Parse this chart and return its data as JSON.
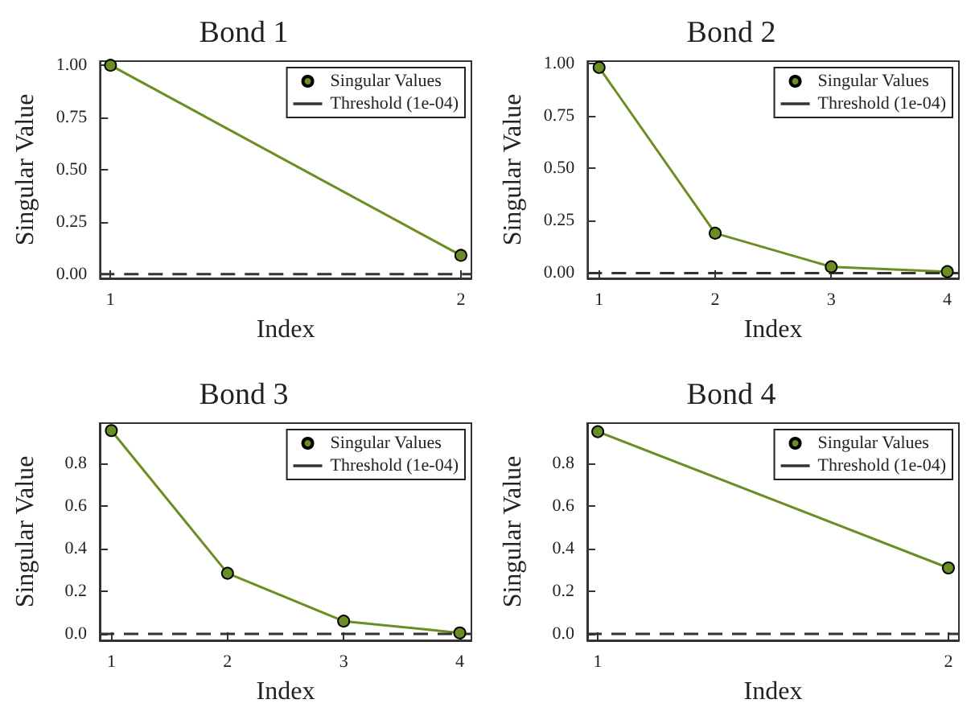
{
  "chart_data": [
    {
      "type": "line",
      "title": "Bond 1",
      "xlabel": "Index",
      "ylabel": "Singular Value",
      "x": [
        1,
        2
      ],
      "xlim": [
        0.97,
        2.03
      ],
      "xticks": [
        1,
        2
      ],
      "ylim": [
        -0.02,
        1.02
      ],
      "yticks": [
        {
          "value": 0,
          "label": "0.00"
        },
        {
          "value": 0.25,
          "label": "0.25"
        },
        {
          "value": 0.5,
          "label": "0.50"
        },
        {
          "value": 0.75,
          "label": "0.75"
        },
        {
          "value": 1,
          "label": "1.00"
        }
      ],
      "series": [
        {
          "name": "Singular Values",
          "color": "#6b8e23",
          "values": [
            1.0,
            0.09
          ]
        }
      ],
      "ref_lines": [
        {
          "axis": "y",
          "value": 0.0001,
          "label": "Threshold (1e-04)",
          "color": "#333333",
          "line_style": "dashed"
        }
      ],
      "marker": "circle",
      "legend": "top right",
      "grid": false
    },
    {
      "type": "line",
      "title": "Bond 2",
      "xlabel": "Index",
      "ylabel": "Singular Value",
      "x": [
        1,
        2,
        3,
        4
      ],
      "xlim": [
        0.9,
        4.1
      ],
      "xticks": [
        1,
        2,
        3,
        4
      ],
      "ylim": [
        -0.025,
        1.01
      ],
      "yticks": [
        {
          "value": 0,
          "label": "0.00"
        },
        {
          "value": 0.25,
          "label": "0.25"
        },
        {
          "value": 0.5,
          "label": "0.50"
        },
        {
          "value": 0.75,
          "label": "0.75"
        },
        {
          "value": 1,
          "label": "1.00"
        }
      ],
      "series": [
        {
          "name": "Singular Values",
          "color": "#6b8e23",
          "values": [
            0.98,
            0.19,
            0.03,
            0.007
          ]
        }
      ],
      "ref_lines": [
        {
          "axis": "y",
          "value": 0.0001,
          "label": "Threshold (1e-04)",
          "color": "#333333",
          "line_style": "dashed"
        }
      ],
      "marker": "circle",
      "legend": "top right",
      "grid": false
    },
    {
      "type": "line",
      "title": "Bond 3",
      "xlabel": "Index",
      "ylabel": "Singular Value",
      "x": [
        1,
        2,
        3,
        4
      ],
      "xlim": [
        0.9,
        4.1
      ],
      "xticks": [
        1,
        2,
        3,
        4
      ],
      "ylim": [
        -0.03,
        0.99
      ],
      "yticks": [
        {
          "value": 0,
          "label": "0.0"
        },
        {
          "value": 0.2,
          "label": "0.2"
        },
        {
          "value": 0.4,
          "label": "0.4"
        },
        {
          "value": 0.6,
          "label": "0.6"
        },
        {
          "value": 0.8,
          "label": "0.8"
        }
      ],
      "series": [
        {
          "name": "Singular Values",
          "color": "#6b8e23",
          "values": [
            0.955,
            0.285,
            0.06,
            0.005
          ]
        }
      ],
      "ref_lines": [
        {
          "axis": "y",
          "value": 0.0001,
          "label": "Threshold (1e-04)",
          "color": "#333333",
          "line_style": "dashed"
        }
      ],
      "marker": "circle",
      "legend": "top right",
      "grid": false
    },
    {
      "type": "line",
      "title": "Bond 4",
      "xlabel": "Index",
      "ylabel": "Singular Value",
      "x": [
        1,
        2
      ],
      "xlim": [
        0.97,
        2.03
      ],
      "xticks": [
        1,
        2
      ],
      "ylim": [
        -0.03,
        0.99
      ],
      "yticks": [
        {
          "value": 0,
          "label": "0.0"
        },
        {
          "value": 0.2,
          "label": "0.2"
        },
        {
          "value": 0.4,
          "label": "0.4"
        },
        {
          "value": 0.6,
          "label": "0.6"
        },
        {
          "value": 0.8,
          "label": "0.8"
        }
      ],
      "series": [
        {
          "name": "Singular Values",
          "color": "#6b8e23",
          "values": [
            0.95,
            0.31
          ]
        }
      ],
      "ref_lines": [
        {
          "axis": "y",
          "value": 0.0001,
          "label": "Threshold (1e-04)",
          "color": "#333333",
          "line_style": "dashed"
        }
      ],
      "marker": "circle",
      "legend": "top right",
      "grid": false
    }
  ]
}
